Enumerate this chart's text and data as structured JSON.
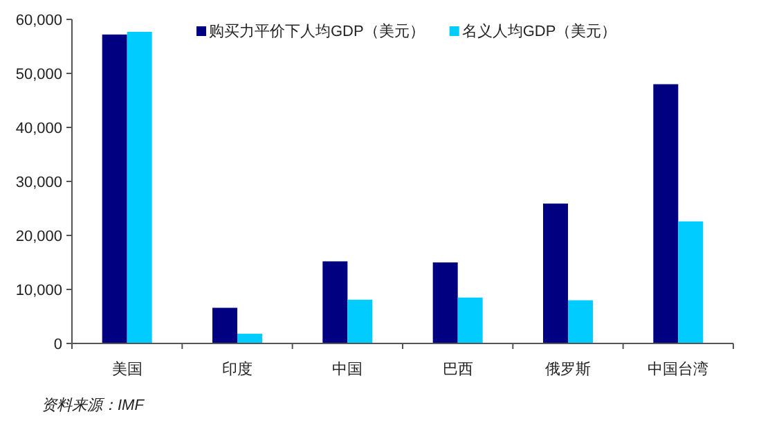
{
  "chart_data": {
    "type": "bar",
    "categories": [
      "美国",
      "印度",
      "中国",
      "巴西",
      "俄罗斯",
      "中国台湾"
    ],
    "series": [
      {
        "name": "购买力平价下人均GDP（美元）",
        "color": "#000080",
        "values": [
          57200,
          6600,
          15200,
          15000,
          25900,
          48000
        ]
      },
      {
        "name": "名义人均GDP（美元）",
        "color": "#00ccff",
        "values": [
          57700,
          1800,
          8100,
          8500,
          8000,
          22600
        ]
      }
    ],
    "ylim": [
      0,
      60000
    ],
    "yticks": [
      {
        "value": 0,
        "label": "0"
      },
      {
        "value": 10000,
        "label": "10,000"
      },
      {
        "value": 20000,
        "label": "20,000"
      },
      {
        "value": 30000,
        "label": "30,000"
      },
      {
        "value": 40000,
        "label": "40,000"
      },
      {
        "value": 50000,
        "label": "50,000"
      },
      {
        "value": 60000,
        "label": "60,000"
      }
    ],
    "grid": false,
    "legend": "top",
    "annotations": [
      "资料来源：IMF"
    ]
  }
}
